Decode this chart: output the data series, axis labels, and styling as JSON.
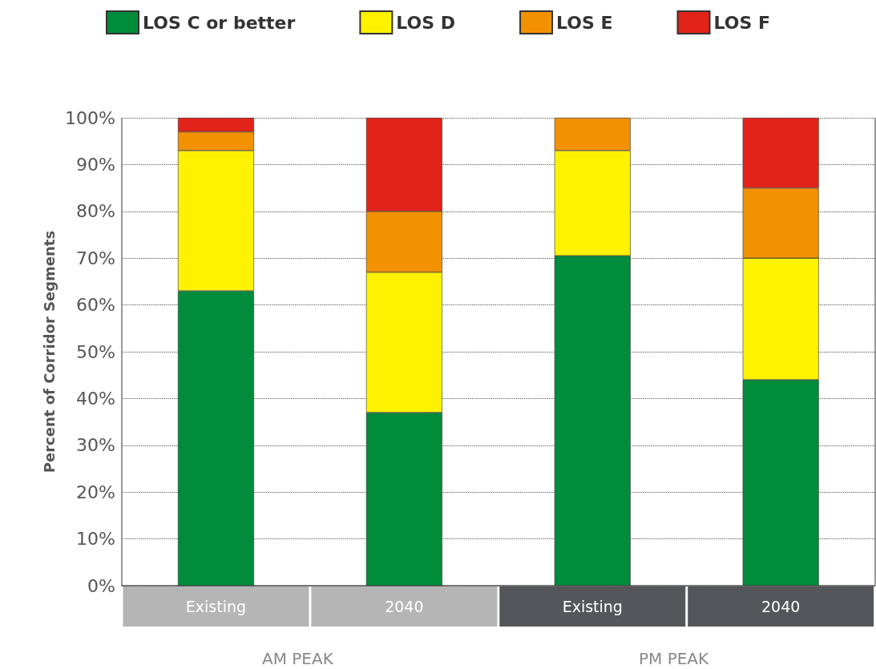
{
  "chart_data": {
    "type": "bar",
    "stacked": true,
    "ylabel": "Percent of Corridor Segments",
    "categories": [
      "Existing",
      "2040",
      "Existing",
      "2040"
    ],
    "series": [
      {
        "name": "LOS C or better",
        "color": "#008c3a",
        "values": [
          63,
          37,
          70.5,
          44
        ]
      },
      {
        "name": "LOS D",
        "color": "#fff200",
        "values": [
          30,
          30,
          22.5,
          26
        ]
      },
      {
        "name": "LOS E",
        "color": "#f39200",
        "values": [
          4,
          13,
          7,
          15
        ]
      },
      {
        "name": "LOS F",
        "color": "#e2231a",
        "values": [
          3,
          20,
          null,
          15
        ]
      }
    ],
    "ylim": [
      0,
      100
    ],
    "yticks": [
      {
        "value": 0,
        "label": "0%"
      },
      {
        "value": 10,
        "label": "10%"
      },
      {
        "value": 20,
        "label": "20%"
      },
      {
        "value": 30,
        "label": "30%"
      },
      {
        "value": 40,
        "label": "40%"
      },
      {
        "value": 50,
        "label": "50%"
      },
      {
        "value": 60,
        "label": "60%"
      },
      {
        "value": 70,
        "label": "70%"
      },
      {
        "value": 80,
        "label": "80%"
      },
      {
        "value": 90,
        "label": "90%"
      },
      {
        "value": 100,
        "label": "100%"
      }
    ],
    "annotations": [
      "AM PEAK",
      "PM PEAK"
    ],
    "grid": "y",
    "legend": "top"
  }
}
